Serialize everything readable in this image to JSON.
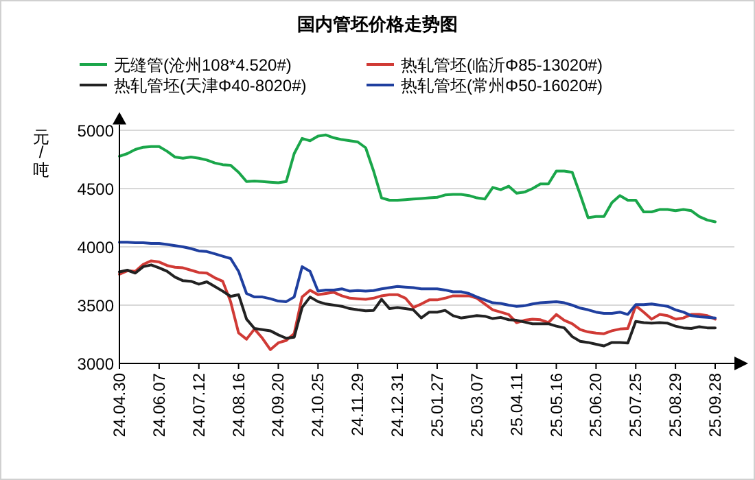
{
  "chart_data": {
    "type": "line",
    "title": "国内管坯价格走势图",
    "ylabel": "元/吨",
    "categories": [
      "24.04.30",
      null,
      null,
      null,
      null,
      "24.06.07",
      null,
      null,
      null,
      null,
      "24.07.12",
      null,
      null,
      null,
      null,
      "24.08.16",
      null,
      null,
      null,
      null,
      "24.09.20",
      null,
      null,
      null,
      null,
      "24.10.25",
      null,
      null,
      null,
      null,
      "24.11.29",
      null,
      null,
      null,
      null,
      "24.12.31",
      null,
      null,
      null,
      null,
      "25.01.27",
      null,
      null,
      null,
      null,
      "25.03.07",
      null,
      null,
      null,
      null,
      "25.04.11",
      null,
      null,
      null,
      null,
      "25.05.16",
      null,
      null,
      null,
      null,
      "25.06.20",
      null,
      null,
      null,
      null,
      "25.07.25",
      null,
      null,
      null,
      null,
      "25.08.29",
      null,
      null,
      null,
      null,
      "25.09.28"
    ],
    "series": [
      {
        "name": "无缝管(沧州108*4.520#)",
        "color": "#1aa64a",
        "values": [
          4777,
          4800,
          4835,
          4855,
          4860,
          4860,
          4820,
          4770,
          4760,
          4770,
          4760,
          4745,
          4720,
          4705,
          4700,
          4640,
          4560,
          4565,
          4560,
          4555,
          4550,
          4560,
          4800,
          4930,
          4910,
          4950,
          4960,
          4935,
          4920,
          4910,
          4900,
          4850,
          4650,
          4420,
          4400,
          4400,
          4405,
          4410,
          4415,
          4420,
          4425,
          4445,
          4450,
          4450,
          4440,
          4420,
          4410,
          4510,
          4490,
          4520,
          4460,
          4470,
          4500,
          4540,
          4540,
          4650,
          4650,
          4640,
          4450,
          4250,
          4260,
          4260,
          4380,
          4440,
          4400,
          4400,
          4300,
          4300,
          4320,
          4320,
          4310,
          4320,
          4310,
          4260,
          4230,
          4215
        ]
      },
      {
        "name": "热轧管坯(临沂Φ85-13020#)",
        "color": "#d03a35",
        "values": [
          3765,
          3795,
          3790,
          3850,
          3880,
          3870,
          3840,
          3825,
          3820,
          3800,
          3780,
          3775,
          3735,
          3705,
          3530,
          3262,
          3208,
          3295,
          3216,
          3118,
          3177,
          3197,
          3256,
          3570,
          3628,
          3590,
          3600,
          3610,
          3580,
          3560,
          3555,
          3550,
          3560,
          3580,
          3590,
          3590,
          3560,
          3480,
          3510,
          3545,
          3545,
          3560,
          3580,
          3580,
          3580,
          3560,
          3510,
          3460,
          3440,
          3420,
          3350,
          3370,
          3380,
          3375,
          3350,
          3420,
          3370,
          3340,
          3290,
          3270,
          3260,
          3255,
          3280,
          3295,
          3300,
          3495,
          3440,
          3380,
          3420,
          3410,
          3380,
          3390,
          3420,
          3420,
          3410,
          3380
        ]
      },
      {
        "name": "热轧管坯(天津Φ40-8020#)",
        "color": "#222222",
        "values": [
          3785,
          3800,
          3775,
          3830,
          3845,
          3820,
          3790,
          3740,
          3710,
          3705,
          3680,
          3700,
          3660,
          3620,
          3575,
          3590,
          3380,
          3300,
          3290,
          3280,
          3245,
          3216,
          3225,
          3480,
          3570,
          3530,
          3510,
          3500,
          3490,
          3470,
          3460,
          3452,
          3455,
          3550,
          3470,
          3480,
          3470,
          3460,
          3390,
          3440,
          3440,
          3455,
          3410,
          3390,
          3400,
          3410,
          3405,
          3385,
          3395,
          3375,
          3370,
          3355,
          3340,
          3340,
          3340,
          3320,
          3305,
          3230,
          3190,
          3180,
          3165,
          3150,
          3180,
          3180,
          3175,
          3360,
          3350,
          3345,
          3350,
          3345,
          3320,
          3305,
          3300,
          3315,
          3305,
          3305
        ]
      },
      {
        "name": "热轧管坯(常州Φ50-16020#)",
        "color": "#1f3f9f",
        "values": [
          4040,
          4040,
          4035,
          4035,
          4030,
          4030,
          4020,
          4010,
          4000,
          3985,
          3965,
          3960,
          3940,
          3920,
          3900,
          3790,
          3600,
          3570,
          3570,
          3555,
          3535,
          3530,
          3570,
          3830,
          3790,
          3620,
          3630,
          3630,
          3640,
          3620,
          3625,
          3620,
          3625,
          3640,
          3650,
          3660,
          3655,
          3650,
          3640,
          3640,
          3640,
          3630,
          3615,
          3615,
          3600,
          3570,
          3545,
          3520,
          3515,
          3500,
          3490,
          3495,
          3510,
          3520,
          3525,
          3530,
          3520,
          3500,
          3475,
          3460,
          3440,
          3430,
          3430,
          3440,
          3420,
          3505,
          3505,
          3510,
          3500,
          3490,
          3460,
          3440,
          3410,
          3400,
          3395,
          3390
        ]
      }
    ],
    "ylim": [
      3000,
      5050
    ],
    "yticks": [
      3000,
      3500,
      4000,
      4500,
      5000
    ],
    "grid": "y",
    "legend": "top",
    "marker": "none"
  }
}
